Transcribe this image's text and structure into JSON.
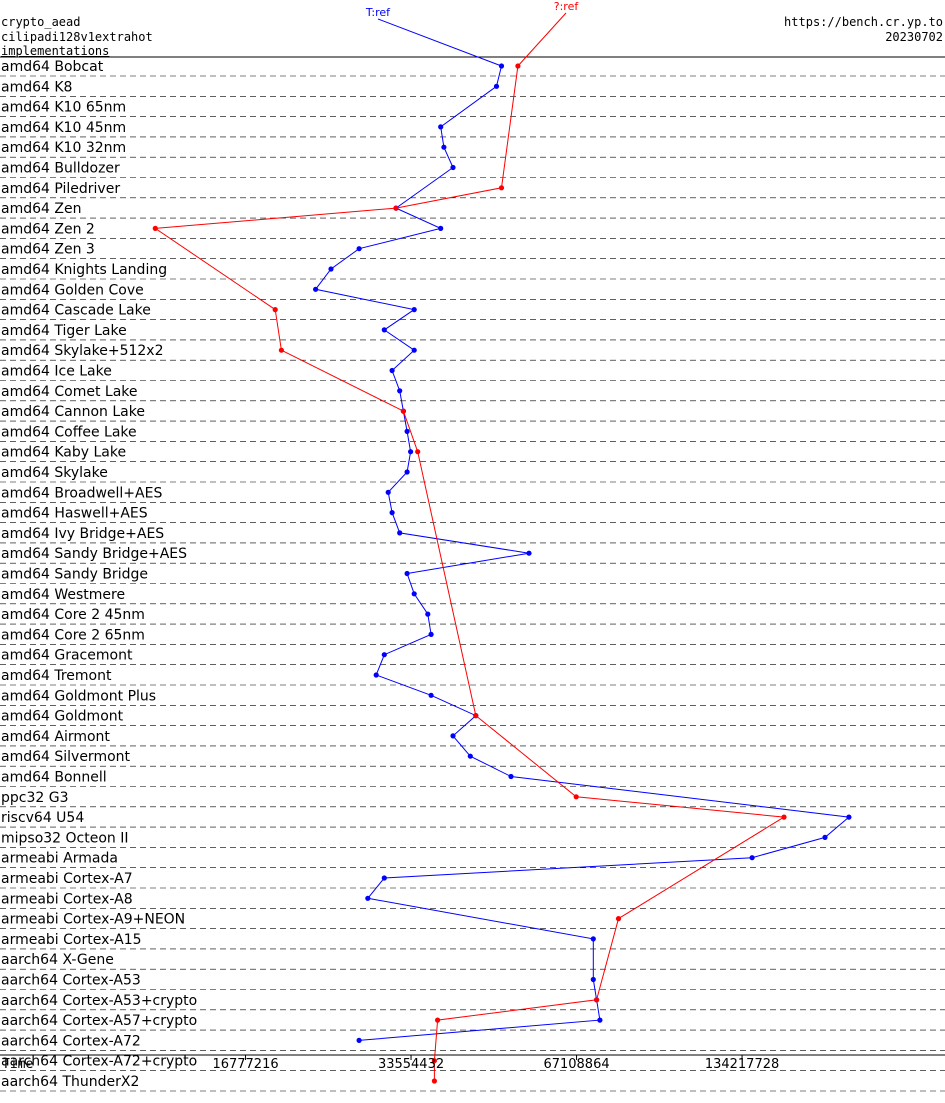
{
  "header": {
    "left_lines": [
      "crypto_aead",
      "cilipadi128v1extrahot",
      "implementations"
    ],
    "right_lines": [
      "https://bench.cr.yp.to",
      "20230702"
    ]
  },
  "chart_data": {
    "type": "line",
    "title": "",
    "xlabel": "Time",
    "x_scale": "log2",
    "xlim": [
      6000000,
      314000000
    ],
    "x_ticks": [
      16777216,
      33554432,
      67108864,
      134217728
    ],
    "x_tick_labels": [
      "16777216",
      "33554432",
      "67108864",
      "134217728"
    ],
    "grid": "dashed horizontal separators",
    "legend": "top-center labels",
    "series": [
      {
        "name": "T:ref",
        "color": "#0000ff",
        "points": [
          [
            "amd64 Bobcat",
            49000000
          ],
          [
            "amd64 K8",
            48000000
          ],
          [
            "amd64 K10 45nm",
            38000000
          ],
          [
            "amd64 K10 32nm",
            38500000
          ],
          [
            "amd64 Bulldozer",
            40000000
          ],
          [
            "amd64 Zen",
            31500000
          ],
          [
            "amd64 Zen 2",
            38000000
          ],
          [
            "amd64 Zen 3",
            27000000
          ],
          [
            "amd64 Knights Landing",
            24000000
          ],
          [
            "amd64 Golden Cove",
            22500000
          ],
          [
            "amd64 Cascade Lake",
            34000000
          ],
          [
            "amd64 Tiger Lake",
            30000000
          ],
          [
            "amd64 Skylake+512x2",
            34000000
          ],
          [
            "amd64 Ice Lake",
            31000000
          ],
          [
            "amd64 Comet Lake",
            32000000
          ],
          [
            "amd64 Cannon Lake",
            32500000
          ],
          [
            "amd64 Coffee Lake",
            33000000
          ],
          [
            "amd64 Kaby Lake",
            33500000
          ],
          [
            "amd64 Skylake",
            33000000
          ],
          [
            "amd64 Broadwell+AES",
            30500000
          ],
          [
            "amd64 Haswell+AES",
            31000000
          ],
          [
            "amd64 Ivy Bridge+AES",
            32000000
          ],
          [
            "amd64 Sandy Bridge+AES",
            55000000
          ],
          [
            "amd64 Sandy Bridge",
            33000000
          ],
          [
            "amd64 Westmere",
            34000000
          ],
          [
            "amd64 Core 2 45nm",
            36000000
          ],
          [
            "amd64 Core 2 65nm",
            36500000
          ],
          [
            "amd64 Gracemont",
            30000000
          ],
          [
            "amd64 Tremont",
            29000000
          ],
          [
            "amd64 Goldmont Plus",
            36500000
          ],
          [
            "amd64 Goldmont",
            44000000
          ],
          [
            "amd64 Airmont",
            40000000
          ],
          [
            "amd64 Silvermont",
            43000000
          ],
          [
            "amd64 Bonnell",
            51000000
          ],
          [
            "riscv64 U54",
            210000000
          ],
          [
            "mipso32 Octeon II",
            190000000
          ],
          [
            "armeabi Armada",
            140000000
          ],
          [
            "armeabi Cortex-A7",
            30000000
          ],
          [
            "armeabi Cortex-A8",
            28000000
          ],
          [
            "armeabi Cortex-A15",
            72000000
          ],
          [
            "aarch64 Cortex-A53",
            72000000
          ],
          [
            "aarch64 Cortex-A53+crypto",
            73000000
          ],
          [
            "aarch64 Cortex-A57+crypto",
            74000000
          ],
          [
            "aarch64 Cortex-A72",
            27000000
          ]
        ]
      },
      {
        "name": "?:ref",
        "color": "#ff0000",
        "points": [
          [
            "amd64 Bobcat",
            52500000
          ],
          [
            "amd64 Piledriver",
            49000000
          ],
          [
            "amd64 Zen",
            31500000
          ],
          [
            "amd64 Zen 2",
            11500000
          ],
          [
            "amd64 Cascade Lake",
            19000000
          ],
          [
            "amd64 Skylake+512x2",
            19500000
          ],
          [
            "amd64 Cannon Lake",
            32500000
          ],
          [
            "amd64 Kaby Lake",
            34500000
          ],
          [
            "amd64 Goldmont",
            44000000
          ],
          [
            "ppc32 G3",
            67000000
          ],
          [
            "riscv64 U54",
            160000000
          ],
          [
            "armeabi Cortex-A9+NEON",
            80000000
          ],
          [
            "aarch64 Cortex-A53+crypto",
            73000000
          ],
          [
            "aarch64 Cortex-A57+crypto",
            37500000
          ],
          [
            "aarch64 Cortex-A72+crypto",
            37000000
          ],
          [
            "aarch64 ThunderX2",
            37000000
          ]
        ]
      }
    ],
    "rows": [
      "amd64 Bobcat",
      "amd64 K8",
      "amd64 K10 65nm",
      "amd64 K10 45nm",
      "amd64 K10 32nm",
      "amd64 Bulldozer",
      "amd64 Piledriver",
      "amd64 Zen",
      "amd64 Zen 2",
      "amd64 Zen 3",
      "amd64 Knights Landing",
      "amd64 Golden Cove",
      "amd64 Cascade Lake",
      "amd64 Tiger Lake",
      "amd64 Skylake+512x2",
      "amd64 Ice Lake",
      "amd64 Comet Lake",
      "amd64 Cannon Lake",
      "amd64 Coffee Lake",
      "amd64 Kaby Lake",
      "amd64 Skylake",
      "amd64 Broadwell+AES",
      "amd64 Haswell+AES",
      "amd64 Ivy Bridge+AES",
      "amd64 Sandy Bridge+AES",
      "amd64 Sandy Bridge",
      "amd64 Westmere",
      "amd64 Core 2 45nm",
      "amd64 Core 2 65nm",
      "amd64 Gracemont",
      "amd64 Tremont",
      "amd64 Goldmont Plus",
      "amd64 Goldmont",
      "amd64 Airmont",
      "amd64 Silvermont",
      "amd64 Bonnell",
      "ppc32 G3",
      "riscv64 U54",
      "mipso32 Octeon II",
      "armeabi Armada",
      "armeabi Cortex-A7",
      "armeabi Cortex-A8",
      "armeabi Cortex-A9+NEON",
      "armeabi Cortex-A15",
      "aarch64 X-Gene",
      "aarch64 Cortex-A53",
      "aarch64 Cortex-A53+crypto",
      "aarch64 Cortex-A57+crypto",
      "aarch64 Cortex-A72",
      "aarch64 Cortex-A72+crypto",
      "aarch64 ThunderX2"
    ]
  }
}
